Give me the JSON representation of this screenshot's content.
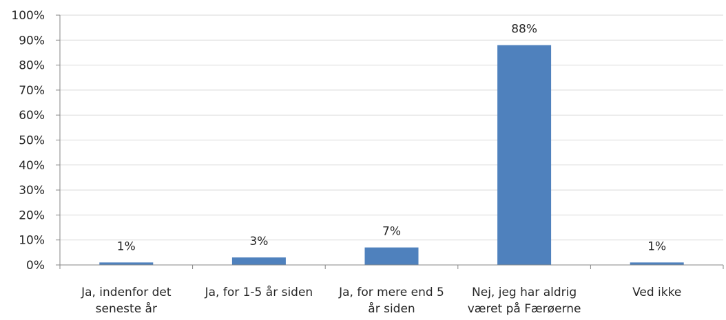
{
  "chart_data": {
    "type": "bar",
    "categories": [
      [
        "Ja, indenfor det",
        "seneste år"
      ],
      [
        "Ja, for 1-5 år siden"
      ],
      [
        "Ja, for mere end 5",
        "år siden"
      ],
      [
        "Nej, jeg har aldrig",
        "været på Færøerne"
      ],
      [
        "Ved ikke"
      ]
    ],
    "values": [
      1,
      3,
      7,
      88,
      1
    ],
    "value_labels": [
      "1%",
      "3%",
      "7%",
      "88%",
      "1%"
    ],
    "yticks": [
      "0%",
      "10%",
      "20%",
      "30%",
      "40%",
      "50%",
      "60%",
      "70%",
      "80%",
      "90%",
      "100%"
    ],
    "ylim": [
      0,
      100
    ],
    "title": "",
    "xlabel": "",
    "ylabel": "",
    "grid": true,
    "legend": "none",
    "colors": {
      "bar": "#4f81bd",
      "grid": "#d9d9d9",
      "axis": "#868686",
      "text": "#262626"
    }
  }
}
